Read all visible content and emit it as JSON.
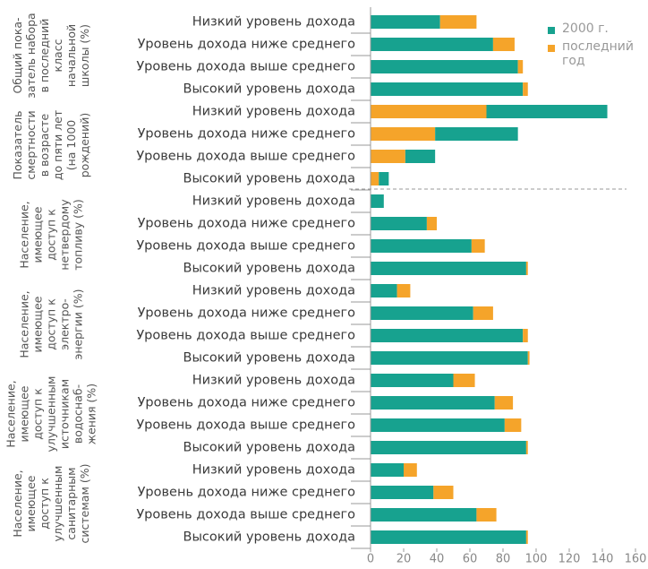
{
  "chart_data": {
    "type": "bar",
    "orientation": "horizontal",
    "stacked": true,
    "legend": [
      {
        "name": "2000 г.",
        "color": "#17a28f"
      },
      {
        "name": "последний год",
        "color": "#f5a42a"
      }
    ],
    "xlim": [
      0,
      160
    ],
    "xticks": [
      0,
      20,
      40,
      60,
      80,
      100,
      120,
      140,
      160
    ],
    "groups": [
      {
        "label": [
          "Общий пока-",
          "затель набора",
          "в последний",
          "класс",
          "начальной",
          "школы (%)"
        ],
        "categories": [
          "Низкий уровень дохода",
          "Уровень дохода ниже среднего",
          "Уровень дохода выше среднего",
          "Высокий уровень дохода"
        ],
        "series": [
          {
            "name": "2000 г.",
            "color": "#17a28f",
            "values": [
              42,
              74,
              89,
              92
            ]
          },
          {
            "name": "последний год",
            "color": "#f5a42a",
            "values": [
              22,
              13,
              3,
              3
            ]
          }
        ]
      },
      {
        "label": [
          "Показатель",
          "смертности",
          "в возрасте",
          "до пяти лет",
          "(на 1000",
          "рождений)"
        ],
        "categories": [
          "Низкий уровень дохода",
          "Уровень дохода ниже среднего",
          "Уровень дохода выше среднего",
          "Высокий уровень дохода"
        ],
        "series": [
          {
            "name": "последний год",
            "color": "#f5a42a",
            "values": [
              70,
              39,
              21,
              5
            ]
          },
          {
            "name": "2000 г.",
            "color": "#17a28f",
            "values": [
              73,
              50,
              18,
              6
            ]
          }
        ]
      },
      {
        "label": [
          "Население,",
          "имеющее",
          "доступ к",
          "нетвердому",
          "топливу (%)"
        ],
        "categories": [
          "Низкий уровень дохода",
          "Уровень дохода ниже среднего",
          "Уровень дохода выше среднего",
          "Высокий уровень дохода"
        ],
        "series": [
          {
            "name": "2000 г.",
            "color": "#17a28f",
            "values": [
              8,
              34,
              61,
              94
            ]
          },
          {
            "name": "последний год",
            "color": "#f5a42a",
            "values": [
              0,
              6,
              8,
              1
            ]
          }
        ]
      },
      {
        "label": [
          "Население,",
          "имеющее",
          "доступ к",
          "электро-",
          "энергии (%)"
        ],
        "categories": [
          "Низкий уровень дохода",
          "Уровень дохода ниже среднего",
          "Уровень дохода выше среднего",
          "Высокий уровень дохода"
        ],
        "series": [
          {
            "name": "2000 г.",
            "color": "#17a28f",
            "values": [
              16,
              62,
              92,
              95
            ]
          },
          {
            "name": "последний год",
            "color": "#f5a42a",
            "values": [
              8,
              12,
              3,
              1
            ]
          }
        ]
      },
      {
        "label": [
          "Население,",
          "имеющее",
          "доступ к",
          "улучшенным",
          "источникам",
          "водоснаб-",
          "жения (%)"
        ],
        "categories": [
          "Низкий уровень дохода",
          "Уровень дохода ниже среднего",
          "Уровень дохода выше среднего",
          "Высокий уровень дохода"
        ],
        "series": [
          {
            "name": "2000 г.",
            "color": "#17a28f",
            "values": [
              50,
              75,
              81,
              94
            ]
          },
          {
            "name": "последний год",
            "color": "#f5a42a",
            "values": [
              13,
              11,
              10,
              1
            ]
          }
        ]
      },
      {
        "label": [
          "Население,",
          "имеющее",
          "доступ к",
          "улучшенным",
          "санитарным",
          "системам (%)"
        ],
        "categories": [
          "Низкий уровень дохода",
          "Уровень дохода ниже среднего",
          "Уровень дохода выше среднего",
          "Высокий уровень дохода"
        ],
        "series": [
          {
            "name": "2000 г.",
            "color": "#17a28f",
            "values": [
              20,
              38,
              64,
              94
            ]
          },
          {
            "name": "последний год",
            "color": "#f5a42a",
            "values": [
              8,
              12,
              12,
              1
            ]
          }
        ]
      }
    ]
  }
}
